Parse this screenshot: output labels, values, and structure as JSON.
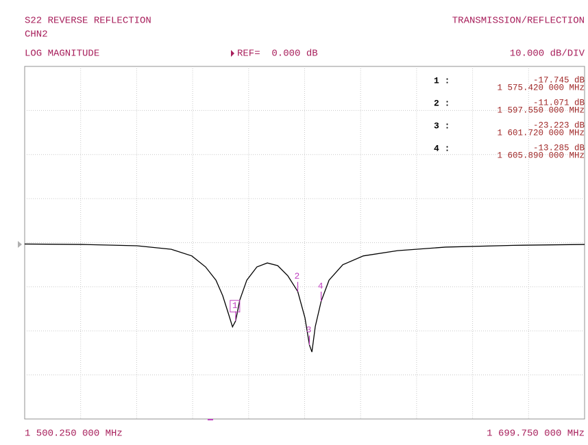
{
  "chart_data": {
    "type": "line",
    "title": "S22 REVERSE REFLECTION",
    "channel": "CHN2",
    "format": "LOG MAGNITUDE",
    "reference": "REF=  0.000 dB",
    "scale": "10.000 dB/DIV",
    "mode": "TRANSMISSION/REFLECTION",
    "x": [
      1500.25,
      1520.76,
      1540.3,
      1552.5,
      1559.8,
      1564.7,
      1568.4,
      1570.8,
      1572.8,
      1574.3,
      1575.42,
      1576.9,
      1579.4,
      1583.0,
      1586.7,
      1590.4,
      1594.0,
      1597.55,
      1600.1,
      1601.72,
      1602.6,
      1603.8,
      1605.89,
      1608.7,
      1613.6,
      1620.9,
      1633.1,
      1650.2,
      1674.6,
      1699.75
    ],
    "series": [
      {
        "color": "#000000",
        "values": [
          -0.3,
          -0.4,
          -0.7,
          -1.5,
          -3,
          -5.5,
          -8.5,
          -12,
          -16,
          -19.1,
          -17.745,
          -13,
          -8.5,
          -5.5,
          -4.6,
          -5.2,
          -7.5,
          -11.071,
          -17,
          -23.223,
          -24.8,
          -19,
          -13.285,
          -8.5,
          -5,
          -3,
          -1.8,
          -1,
          -0.6,
          -0.4
        ]
      }
    ],
    "xlim": [
      1500.25,
      1699.75
    ],
    "ylim": [
      -40,
      40
    ],
    "xticks": [
      {
        "value": 1500.25,
        "label": "1 500.250 000 MHz"
      },
      {
        "value": 1699.75,
        "label": "1 699.750 000 MHz"
      }
    ],
    "grid_divisions": {
      "x": 10,
      "y": 8
    },
    "grid": true,
    "marker_color": "#c040c0",
    "markers": [
      {
        "name": "1",
        "readout_label": "1 :",
        "x": 1575.42,
        "y": -17.745,
        "value_label": "-17.745 dB",
        "x_label": "1 575.420 000 MHz",
        "active": true
      },
      {
        "name": "2",
        "readout_label": "2 :",
        "x": 1597.55,
        "y": -11.071,
        "value_label": "-11.071 dB",
        "x_label": "1 597.550 000 MHz",
        "active": false
      },
      {
        "name": "3",
        "readout_label": "3 :",
        "x": 1601.72,
        "y": -23.223,
        "value_label": "-23.223 dB",
        "x_label": "1 601.720 000 MHz",
        "active": false
      },
      {
        "name": "4",
        "readout_label": "4 :",
        "x": 1605.89,
        "y": -13.285,
        "value_label": "-13.285 dB",
        "x_label": "1 605.890 000 MHz",
        "active": false
      }
    ]
  }
}
